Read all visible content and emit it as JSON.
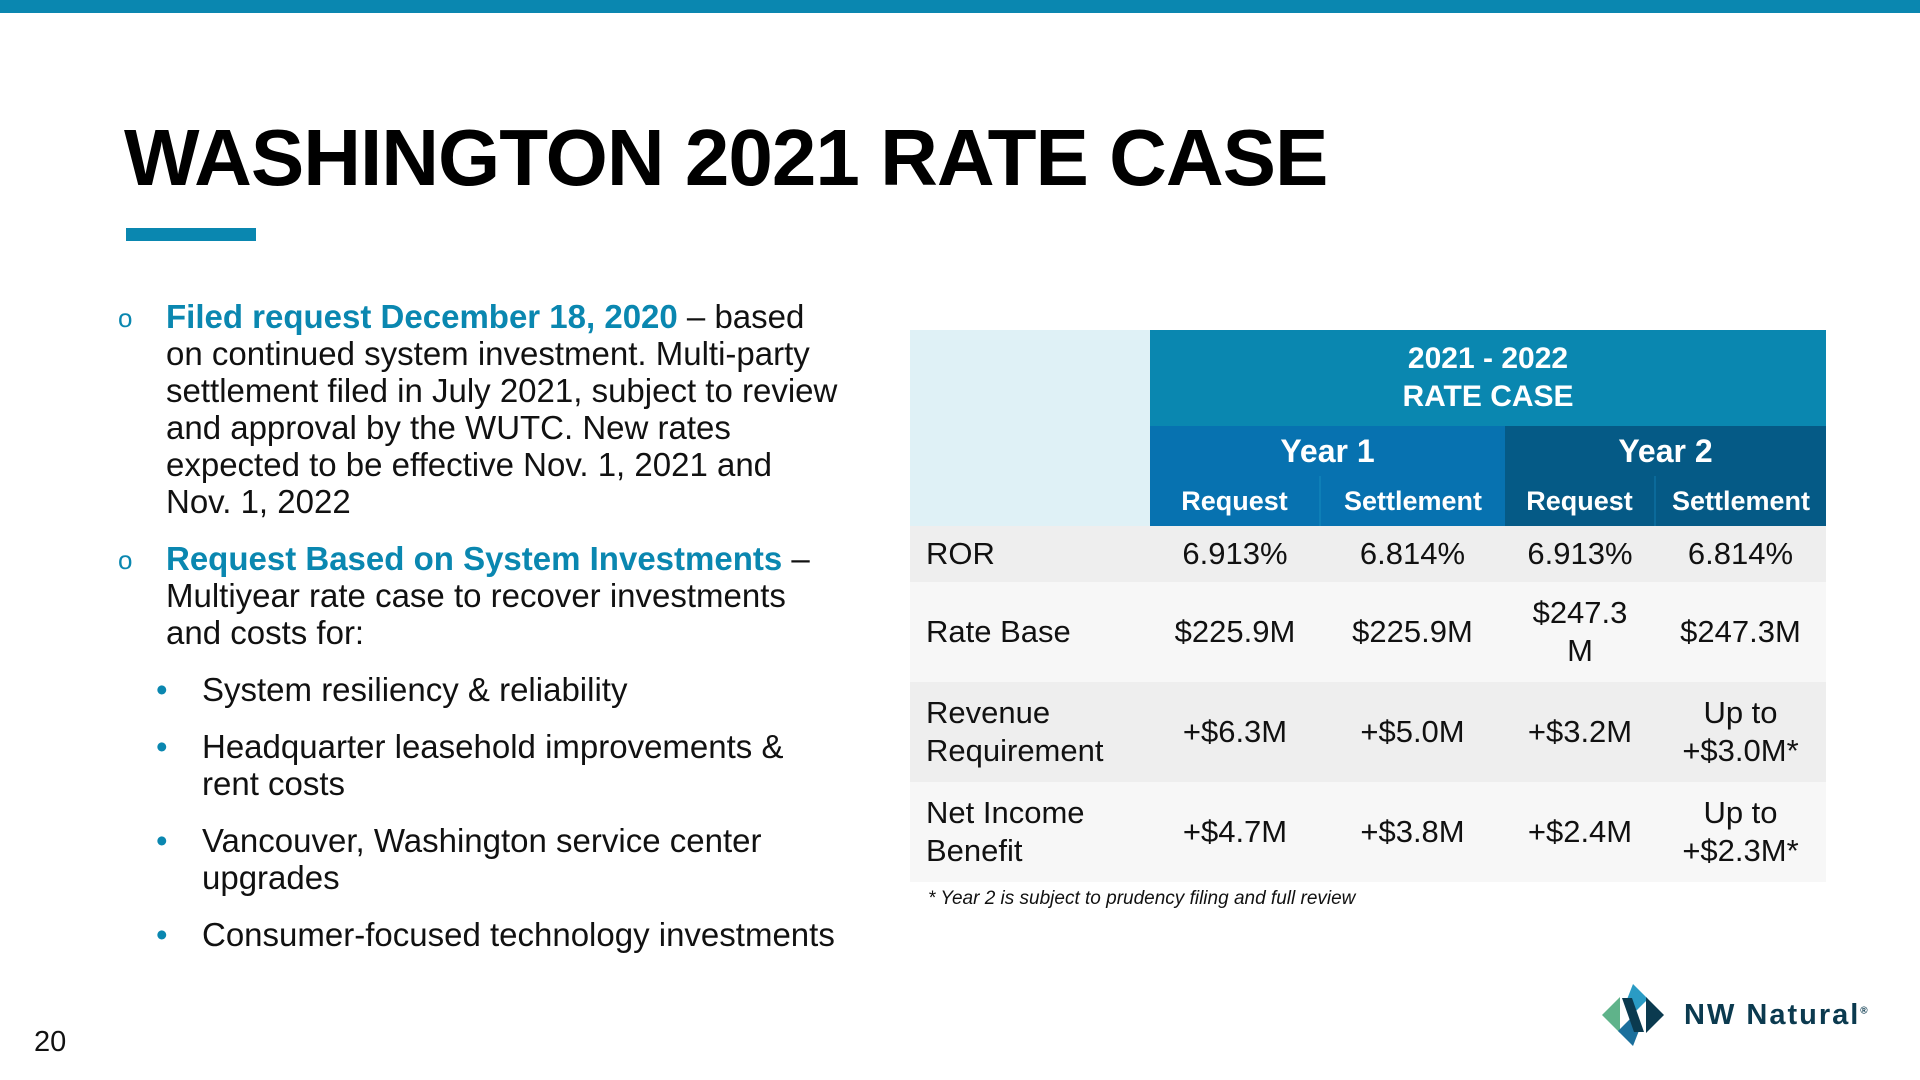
{
  "slide": {
    "title": "WASHINGTON 2021 RATE CASE",
    "page_number": "20",
    "colors": {
      "accent": "#0a87b0",
      "header_dark": "#055a86",
      "header_mid": "#0772b0",
      "logo_text": "#0b3a4f"
    }
  },
  "bullets": {
    "b1": {
      "highlight": "Filed request December 18, 2020",
      "rest": " – based on continued system investment. Multi-party settlement filed in July 2021, subject to review and approval by the WUTC. New rates expected to be effective Nov. 1, 2021 and Nov. 1, 2022"
    },
    "b2": {
      "highlight": "Request Based on System Investments",
      "rest": " – Multiyear rate case to recover investments and costs for:"
    },
    "sub": [
      "System resiliency & reliability",
      "Headquarter leasehold improvements & rent costs",
      "Vancouver, Washington service center upgrades",
      "Consumer-focused technology investments"
    ]
  },
  "table": {
    "header_line1": "2021 - 2022",
    "header_line2": "RATE CASE",
    "year1": "Year 1",
    "year2": "Year 2",
    "request": "Request",
    "settlement": "Settlement",
    "rows": [
      {
        "label1": "ROR",
        "label2": "",
        "cells": [
          "6.913%",
          "6.814%",
          "6.913%",
          "6.814%"
        ]
      },
      {
        "label1": "Rate Base",
        "label2": "",
        "cells": [
          "$225.9M",
          "$225.9M",
          "$247.3",
          "$247.3M"
        ],
        "cell3_line2": "M"
      },
      {
        "label1": "Revenue",
        "label2": "Requirement",
        "cells": [
          "+$6.3M",
          "+$5.0M",
          "+$3.2M",
          "Up to"
        ],
        "cell4_line2": "+$3.0M*"
      },
      {
        "label1": "Net Income",
        "label2": "Benefit",
        "cells": [
          "+$4.7M",
          "+$3.8M",
          "+$2.4M",
          "Up to"
        ],
        "cell4_line2": "+$2.3M*"
      }
    ],
    "footnote": "* Year 2 is subject to prudency filing and full review"
  },
  "logo": {
    "text": "NW Natural",
    "mark": "®"
  }
}
